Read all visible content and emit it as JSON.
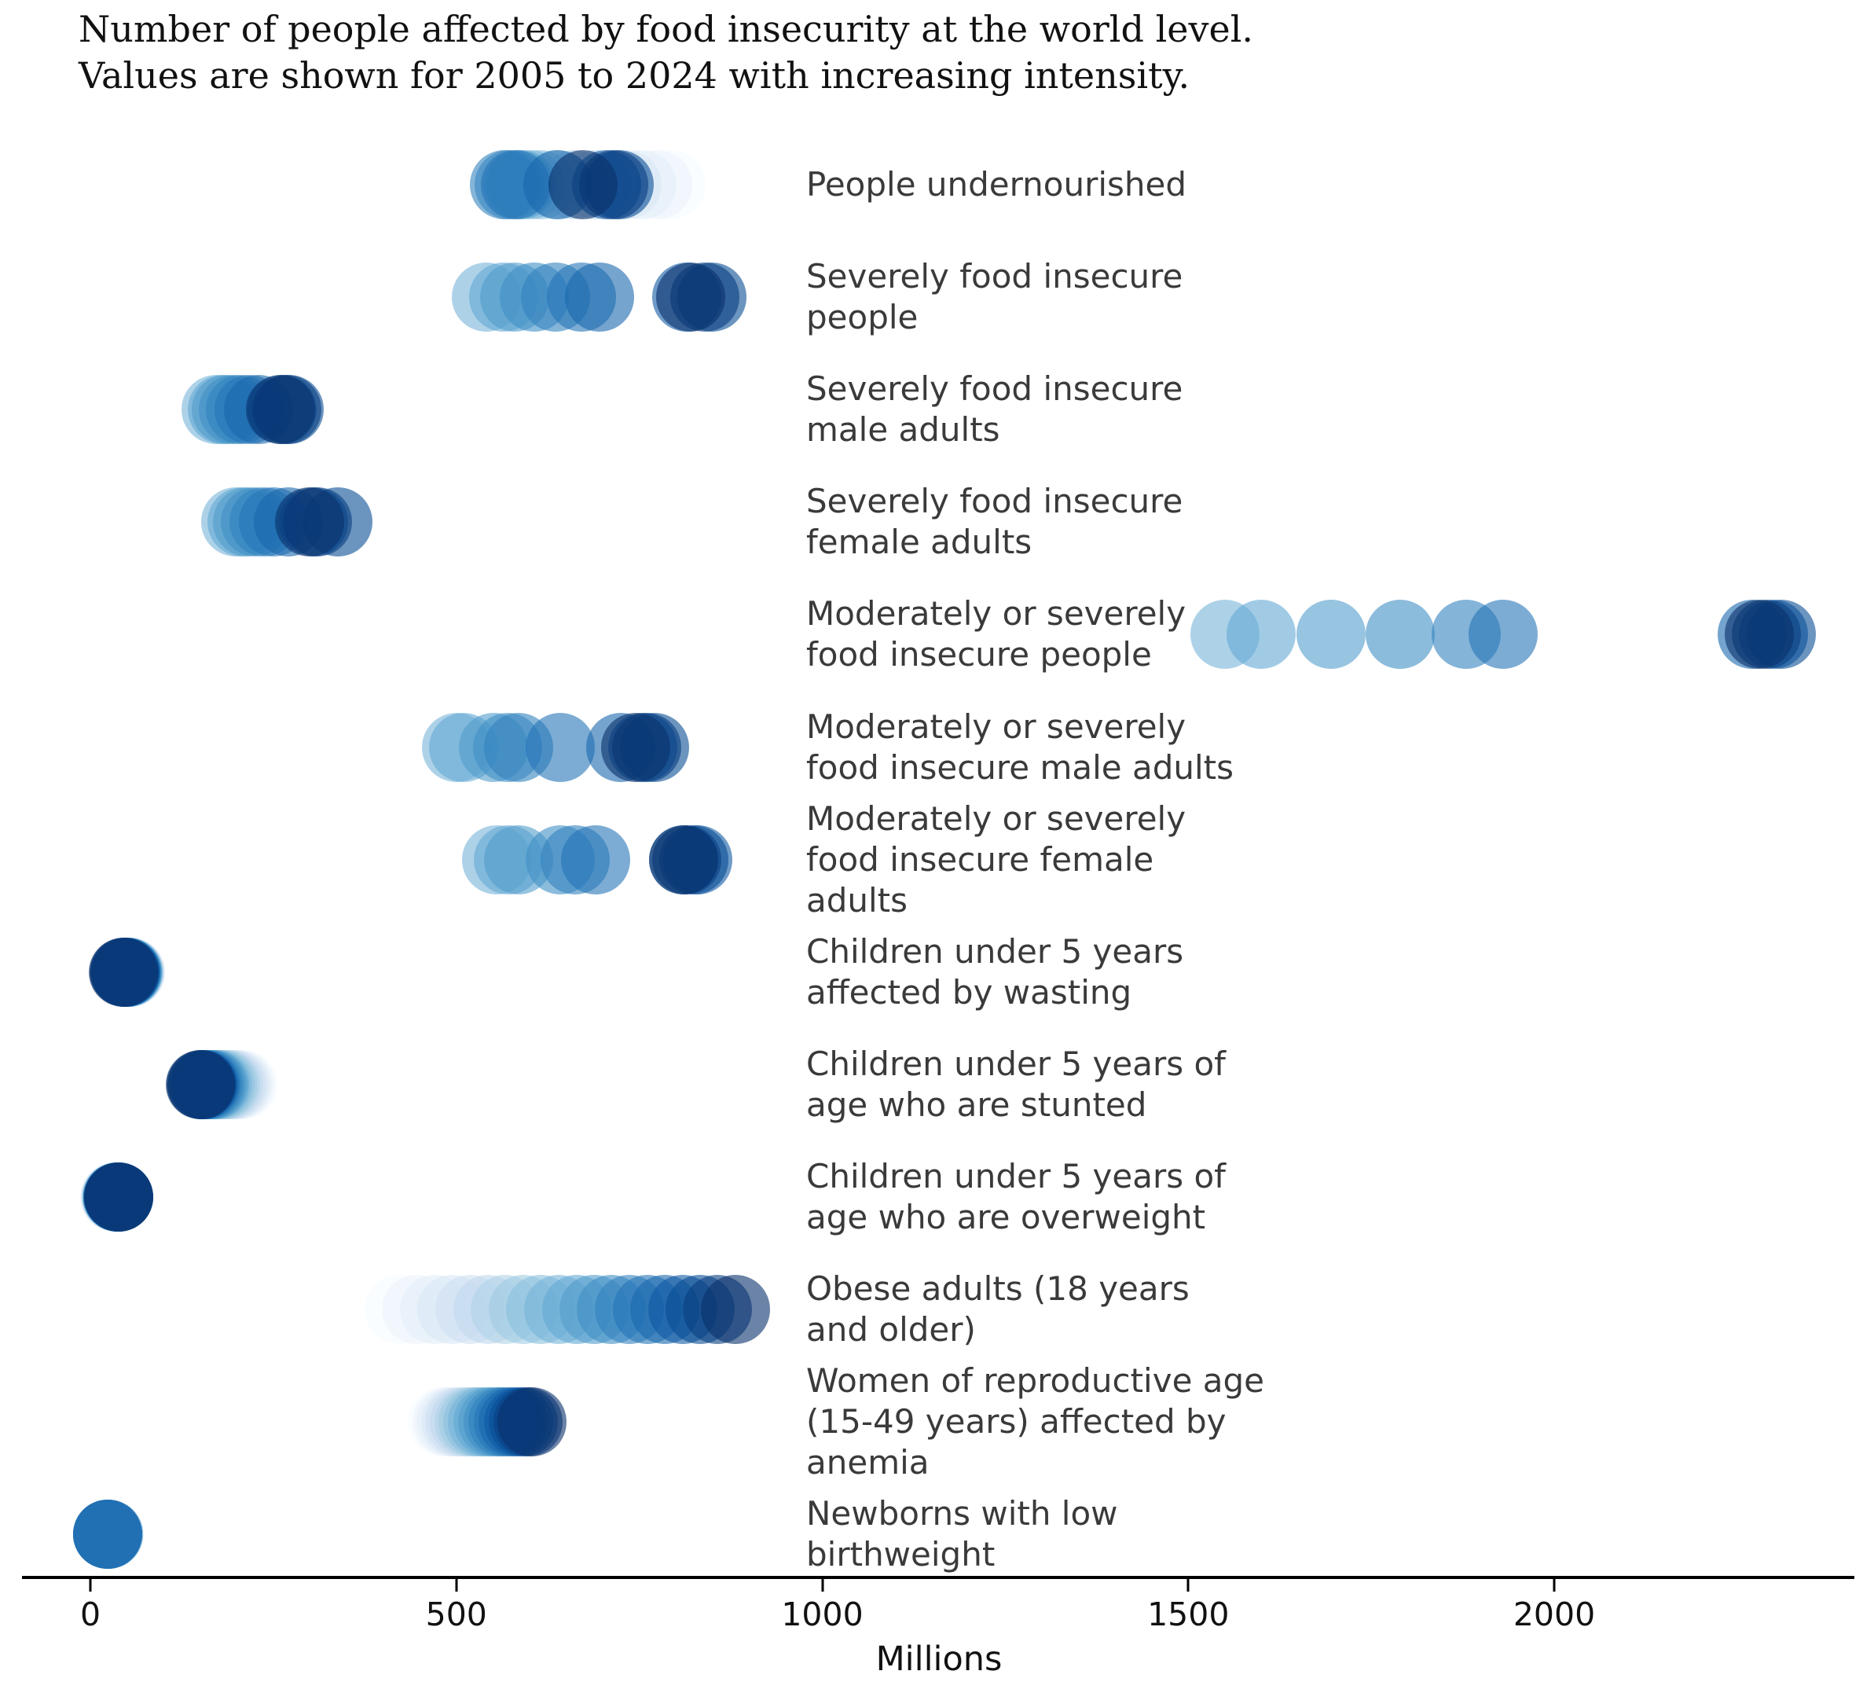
{
  "title": {
    "line1": "Number of people affected by food insecurity at the world level.",
    "line2": "Values are shown for 2005 to 2024 with increasing intensity."
  },
  "axis": {
    "xlabel": "Millions",
    "ticks": [
      0,
      500,
      1000,
      1500,
      2000
    ]
  },
  "colors": {
    "colormap": "Blues",
    "colormap_anchors": [
      "#f7fbff",
      "#deebf7",
      "#c6dbef",
      "#9ecae1",
      "#6baed6",
      "#4292c6",
      "#2171b5",
      "#08519c",
      "#08306b"
    ],
    "dot_alpha": 0.6,
    "label_text": "#3a3a3a",
    "axis_text": "#111111",
    "axis_line": "#000000"
  },
  "chart_data": {
    "type": "scatter",
    "title": "Number of people affected by food insecurity at the world level. Values are shown for 2005 to 2024 with increasing intensity.",
    "xlabel": "Millions",
    "xlim": [
      -90,
      2410
    ],
    "x_ticks": [
      0,
      500,
      1000,
      1500,
      2000
    ],
    "grid": false,
    "legend": "none; year encoded as color intensity (2005 lightest to 2024 darkest)",
    "years": [
      2005,
      2006,
      2007,
      2008,
      2009,
      2010,
      2011,
      2012,
      2013,
      2014,
      2015,
      2016,
      2017,
      2018,
      2019,
      2020,
      2021,
      2022,
      2023,
      2024
    ],
    "units": "millions of people",
    "series": [
      {
        "label": "People undernourished",
        "label_lines": [
          "People undernourished"
        ],
        "values": [
          793,
          775,
          754,
          733,
          716,
          690,
          661,
          636,
          615,
          601,
          589,
          585,
          572,
          566,
          581,
          639,
          705,
          722,
          715,
          673
        ]
      },
      {
        "label": "Severely food insecure people",
        "label_lines": [
          "Severely food insecure",
          "people"
        ],
        "values": [
          null,
          null,
          null,
          null,
          null,
          null,
          null,
          null,
          null,
          541,
          565,
          580,
          607,
          635,
          671,
          696,
          815,
          849,
          840,
          820
        ]
      },
      {
        "label": "Severely food insecure male adults",
        "label_lines": [
          "Severely food insecure",
          "male adults"
        ],
        "values": [
          null,
          null,
          null,
          null,
          null,
          null,
          null,
          null,
          null,
          172,
          180,
          186,
          195,
          205,
          217,
          230,
          262,
          272,
          268,
          260
        ]
      },
      {
        "label": "Severely food insecure female adults",
        "label_lines": [
          "Severely food insecure",
          "female adults"
        ],
        "values": [
          null,
          null,
          null,
          null,
          null,
          null,
          null,
          null,
          null,
          199,
          207,
          215,
          225,
          237,
          250,
          270,
          305,
          338,
          310,
          300
        ]
      },
      {
        "label": "Moderately or severely food insecure people",
        "label_lines": [
          "Moderately or severely",
          "food insecure people"
        ],
        "values": [
          null,
          null,
          null,
          null,
          null,
          null,
          null,
          null,
          null,
          1550,
          1600,
          1695,
          1790,
          1880,
          1930,
          2270,
          2300,
          2310,
          2290,
          2280
        ]
      },
      {
        "label": "Moderately or severely food insecure male adults",
        "label_lines": [
          "Moderately or severely",
          "food insecure male adults"
        ],
        "values": [
          null,
          null,
          null,
          null,
          null,
          null,
          null,
          null,
          null,
          500,
          510,
          551,
          570,
          585,
          642,
          725,
          755,
          771,
          760,
          745
        ]
      },
      {
        "label": "Moderately or severely food insecure female adults",
        "label_lines": [
          "Moderately or severely",
          "food insecure female",
          "adults"
        ],
        "values": [
          null,
          null,
          null,
          null,
          null,
          null,
          null,
          null,
          null,
          555,
          571,
          585,
          642,
          662,
          690,
          810,
          830,
          825,
          815,
          810
        ]
      },
      {
        "label": "Children under 5 years affected by wasting",
        "label_lines": [
          "Children under 5 years",
          "affected by wasting"
        ],
        "values": [
          56,
          55,
          54.5,
          54,
          53.5,
          53,
          52.5,
          52,
          51.5,
          51,
          50.5,
          50,
          49.5,
          49,
          48.5,
          48,
          47.5,
          47,
          46.5,
          45
        ]
      },
      {
        "label": "Children under 5 years of age who are stunted",
        "label_lines": [
          "Children under 5 years of",
          "age who are stunted"
        ],
        "values": [
          209,
          205,
          201,
          197,
          193,
          189,
          185,
          181,
          177,
          173,
          170,
          167,
          164,
          161,
          158,
          156,
          154,
          152,
          151,
          150
        ]
      },
      {
        "label": "Children under 5 years of age who are overweight",
        "label_lines": [
          "Children under 5 years of",
          "age who are overweight"
        ],
        "values": [
          33,
          33.5,
          34,
          34.5,
          35,
          35.5,
          36,
          36.3,
          36.6,
          36.9,
          37.2,
          37.4,
          37.6,
          37.8,
          38,
          38.2,
          38.4,
          38.6,
          38.8,
          39
        ]
      },
      {
        "label": "Obese adults (18 years and older)",
        "label_lines": [
          "Obese adults (18 years",
          "and older)"
        ],
        "values": [
          422,
          446,
          470,
          494,
          518,
          543,
          567,
          591,
          615,
          640,
          664,
          688,
          712,
          736,
          761,
          785,
          809,
          833,
          857,
          881
        ]
      },
      {
        "label": "Women of reproductive age (15-49 years) affected by anemia",
        "label_lines": [
          "Women of reproductive age",
          "(15-49 years) affected by",
          "anemia"
        ],
        "values": [
          481,
          487,
          493,
          499,
          505,
          511,
          517,
          523,
          529,
          536,
          543,
          550,
          557,
          564,
          571,
          578,
          585,
          592,
          598,
          603
        ]
      },
      {
        "label": "Newborns with low birthweight",
        "label_lines": [
          "Newborns with low",
          "birthweight"
        ],
        "values": [
          25.8,
          25.6,
          25.4,
          25.2,
          25.0,
          24.8,
          24.6,
          24.4,
          24.2,
          24.0,
          23.9,
          23.8,
          23.7,
          23.6,
          23.5,
          23.4,
          null,
          null,
          null,
          null
        ]
      }
    ]
  }
}
